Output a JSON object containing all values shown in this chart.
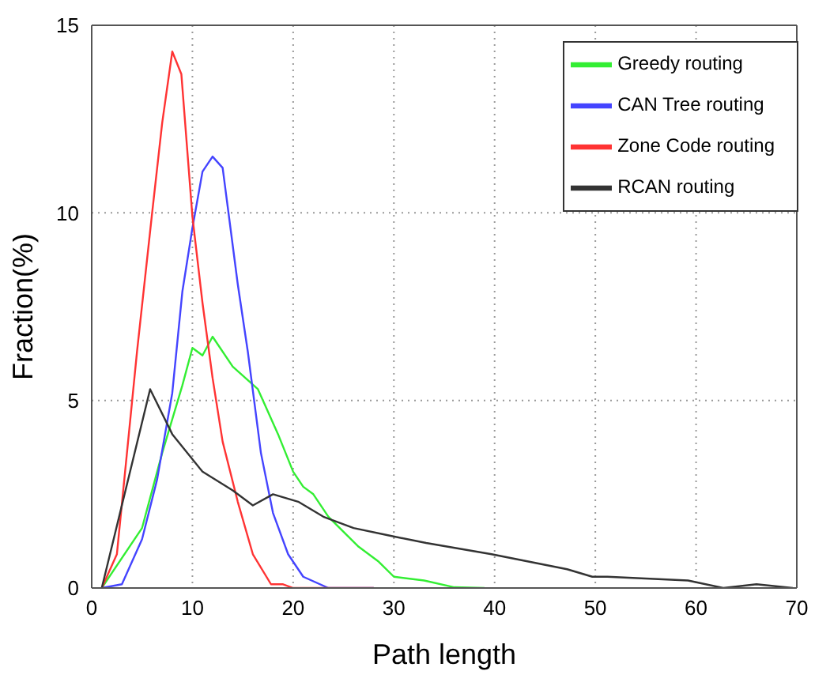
{
  "chart_data": {
    "type": "line",
    "xlabel": "Path length",
    "ylabel": "Fraction(%)",
    "xlim": [
      0,
      70
    ],
    "xticks": [
      0,
      10,
      20,
      30,
      40,
      50,
      60,
      70
    ],
    "ylim": [
      0,
      15
    ],
    "yticks": [
      0,
      5,
      10,
      15
    ],
    "grid": true,
    "legend": "top right",
    "marker": "none",
    "line_style": "solid",
    "series": [
      {
        "name": "Greedy routing",
        "color": "#33ee33",
        "x": [
          1,
          5,
          7,
          9,
          10,
          11,
          12,
          14,
          16.5,
          18.5,
          20,
          21,
          22,
          23.5,
          26.5,
          28.5,
          30,
          33,
          36,
          39
        ],
        "values": [
          0,
          1.6,
          3.6,
          5.4,
          6.4,
          6.2,
          6.7,
          5.9,
          5.3,
          4.1,
          3.1,
          2.7,
          2.5,
          1.9,
          1.1,
          0.7,
          0.3,
          0.2,
          0.02,
          0
        ]
      },
      {
        "name": "CAN Tree routing",
        "color": "#4444ff",
        "x": [
          1,
          3,
          5,
          6.5,
          8,
          9,
          10,
          11,
          12,
          13,
          14.5,
          15.5,
          16.8,
          18,
          19.5,
          21,
          23.5,
          28
        ],
        "values": [
          0,
          0.1,
          1.3,
          2.9,
          5.2,
          7.9,
          9.6,
          11.1,
          11.5,
          11.2,
          8.1,
          6.3,
          3.6,
          2,
          0.9,
          0.3,
          0,
          0
        ]
      },
      {
        "name": "Zone Code routing",
        "color": "#ff3333",
        "x": [
          1,
          2.5,
          4.5,
          6,
          7,
          8,
          8.9,
          10,
          11,
          12,
          13,
          14.5,
          16,
          17.8,
          19,
          20,
          28
        ],
        "values": [
          0,
          0.9,
          6.3,
          10,
          12.4,
          14.3,
          13.7,
          9.9,
          7.6,
          5.6,
          3.9,
          2.3,
          0.9,
          0.1,
          0.1,
          0,
          0
        ]
      },
      {
        "name": "RCAN routing",
        "color": "#333333",
        "x": [
          1,
          5.8,
          8,
          11,
          14,
          16,
          18,
          20.5,
          23,
          26,
          29.5,
          33.2,
          39.7,
          47.2,
          49.7,
          51.2,
          59.2,
          62.7,
          66,
          69.6
        ],
        "values": [
          0,
          5.3,
          4.1,
          3.1,
          2.6,
          2.2,
          2.5,
          2.3,
          1.9,
          1.6,
          1.4,
          1.2,
          0.9,
          0.5,
          0.3,
          0.3,
          0.2,
          0,
          0.1,
          0
        ]
      }
    ]
  }
}
